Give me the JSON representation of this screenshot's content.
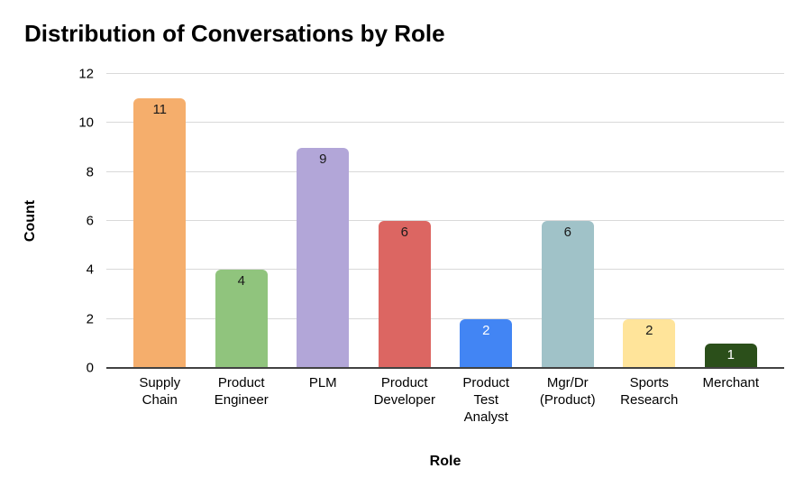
{
  "chart_data": {
    "type": "bar",
    "title": "Distribution of Conversations by Role",
    "xlabel": "Role",
    "ylabel": "Count",
    "categories": [
      "Supply Chain",
      "Product Engineer",
      "PLM",
      "Product Developer",
      "Product Test Analyst",
      "Mgr/Dr (Product)",
      "Sports Research",
      "Merchant"
    ],
    "category_lines": [
      [
        "Supply",
        "Chain"
      ],
      [
        "Product",
        "Engineer"
      ],
      [
        "PLM"
      ],
      [
        "Product",
        "Developer"
      ],
      [
        "Product",
        "Test",
        "Analyst"
      ],
      [
        "Mgr/Dr",
        "(Product)"
      ],
      [
        "Sports",
        "Research"
      ],
      [
        "Merchant"
      ]
    ],
    "values": [
      11,
      4,
      9,
      6,
      2,
      6,
      2,
      1
    ],
    "bar_colors": [
      "#F5AE6C",
      "#90C47D",
      "#B2A6D8",
      "#DC6662",
      "#4285F4",
      "#A0C2C8",
      "#FFE49A",
      "#2B4F1A"
    ],
    "value_label_colors": [
      "#1a1a1a",
      "#1a1a1a",
      "#1a1a1a",
      "#1a1a1a",
      "#ffffff",
      "#1a1a1a",
      "#1a1a1a",
      "#ffffff"
    ],
    "ylim": [
      0,
      12
    ],
    "yticks": [
      0,
      2,
      4,
      6,
      8,
      10,
      12
    ],
    "grid": true,
    "legend": "none",
    "colors": {
      "gridline": "#d9d9d9",
      "axis_line": "#424242",
      "text": "#000000"
    }
  }
}
